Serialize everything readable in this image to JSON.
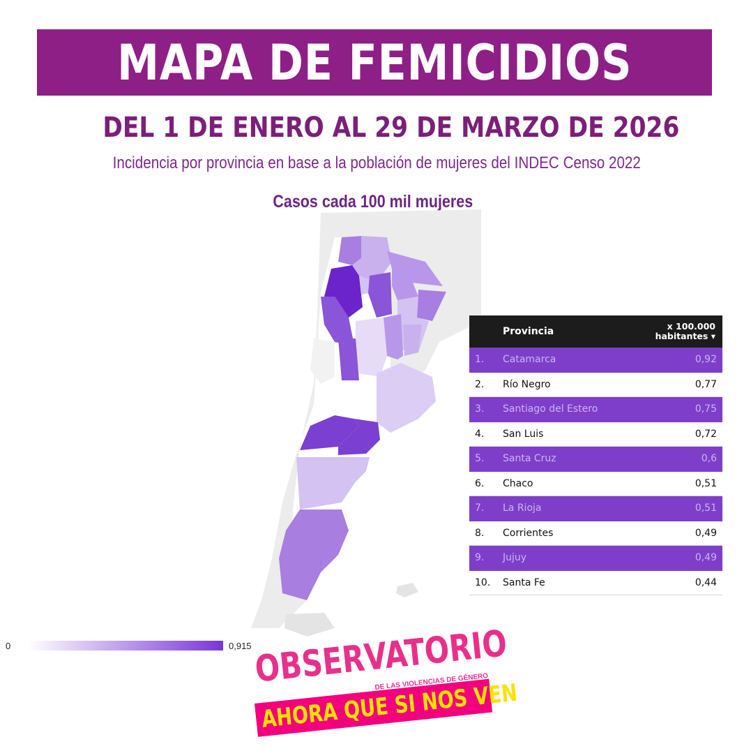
{
  "title": "MAPA DE FEMICIDIOS",
  "subtitle": "DEL 1 DE ENERO AL 29 DE MARZO DE 2026",
  "description": "Incidencia por provincia en base a la población de mujeres del INDEC Censo 2022",
  "unit_label": "Casos cada 100 mil mujeres",
  "table": {
    "header_province": "Provincia",
    "header_value_line1": "x 100.000",
    "header_value_line2": "habitantes",
    "header_sort_icon": "caret-down-icon",
    "rows": [
      {
        "rank": "1.",
        "name": "Catamarca",
        "value": "0,92"
      },
      {
        "rank": "2.",
        "name": "Río Negro",
        "value": "0,77"
      },
      {
        "rank": "3.",
        "name": "Santiago del Estero",
        "value": "0,75"
      },
      {
        "rank": "4.",
        "name": "San Luis",
        "value": "0,72"
      },
      {
        "rank": "5.",
        "name": "Santa Cruz",
        "value": "0,6"
      },
      {
        "rank": "6.",
        "name": "Chaco",
        "value": "0,51"
      },
      {
        "rank": "7.",
        "name": "La Rioja",
        "value": "0,51"
      },
      {
        "rank": "8.",
        "name": "Corrientes",
        "value": "0,49"
      },
      {
        "rank": "9.",
        "name": "Jujuy",
        "value": "0,49"
      },
      {
        "rank": "10.",
        "name": "Santa Fe",
        "value": "0,44"
      }
    ]
  },
  "legend": {
    "min": "0",
    "max": "0,915"
  },
  "logo": {
    "main": "OBSERVATORIO",
    "sub": "DE LAS VIOLENCIAS DE GÉNERO",
    "band": "AHORA QUE SI NOS VEN"
  },
  "colors": {
    "banner": "#8e1f86",
    "title_text": "#7b1f78",
    "map_max": "#7a36d8",
    "map_min": "#ffffff",
    "row_highlight": "#7e3ec9",
    "logo_pink": "#e8308a",
    "logo_band": "#f2007d",
    "logo_yellow": "#ffe100"
  }
}
